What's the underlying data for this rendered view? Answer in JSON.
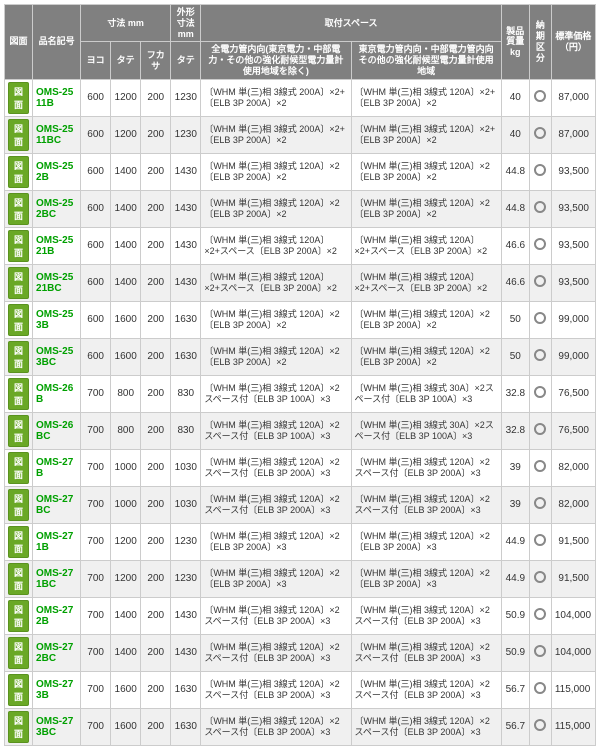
{
  "headers": {
    "zumen": "図面",
    "hinban": "品名記号",
    "sunpo_group": "寸法 mm",
    "gaikei_group": "外形寸法 mm",
    "toritsuke_group": "取付スペース",
    "sub": {
      "yoko": "ヨコ",
      "tate": "タテ",
      "fukasa": "フカサ",
      "tate2": "タテ",
      "spec_all": "全電力管内向(東京電力・中部電力・その他の強化耐候型電力量計使用地域を除く)",
      "spec_tokyo": "東京電力管内向・中部電力管内向その他の強化耐候型電力量計使用地域"
    },
    "shitsuryo": "製品質量 kg",
    "nouki": "納期区分",
    "kakaku": "標準価格（円）"
  },
  "button_label": "図面",
  "rows": [
    {
      "code": "OMS-2511B",
      "yoko": 600,
      "tate": 1200,
      "fukasa": 200,
      "tate2": 1230,
      "spec1": "〔WHM 単(三)相 3線式 200A〕×2+〔ELB 3P 200A〕×2",
      "spec2": "〔WHM 単(三)相 3線式 120A〕×2+〔ELB 3P 200A〕×2",
      "kg": "40",
      "price": "87,000"
    },
    {
      "code": "OMS-2511BC",
      "yoko": 600,
      "tate": 1200,
      "fukasa": 200,
      "tate2": 1230,
      "spec1": "〔WHM 単(三)相 3線式 200A〕×2+〔ELB 3P 200A〕×2",
      "spec2": "〔WHM 単(三)相 3線式 120A〕×2+〔ELB 3P 200A〕×2",
      "kg": "40",
      "price": "87,000"
    },
    {
      "code": "OMS-252B",
      "yoko": 600,
      "tate": 1400,
      "fukasa": 200,
      "tate2": 1430,
      "spec1": "〔WHM 単(三)相 3線式 120A〕×2〔ELB 3P 200A〕×2",
      "spec2": "〔WHM 単(三)相 3線式 120A〕×2〔ELB 3P 200A〕×2",
      "kg": "44.8",
      "price": "93,500"
    },
    {
      "code": "OMS-252BC",
      "yoko": 600,
      "tate": 1400,
      "fukasa": 200,
      "tate2": 1430,
      "spec1": "〔WHM 単(三)相 3線式 120A〕×2〔ELB 3P 200A〕×2",
      "spec2": "〔WHM 単(三)相 3線式 120A〕×2〔ELB 3P 200A〕×2",
      "kg": "44.8",
      "price": "93,500"
    },
    {
      "code": "OMS-2521B",
      "yoko": 600,
      "tate": 1400,
      "fukasa": 200,
      "tate2": 1430,
      "spec1": "〔WHM 単(三)相 3線式 120A〕×2+スペース〔ELB 3P 200A〕×2",
      "spec2": "〔WHM 単(三)相 3線式 120A〕×2+スペース〔ELB 3P 200A〕×2",
      "kg": "46.6",
      "price": "93,500"
    },
    {
      "code": "OMS-2521BC",
      "yoko": 600,
      "tate": 1400,
      "fukasa": 200,
      "tate2": 1430,
      "spec1": "〔WHM 単(三)相 3線式 120A〕×2+スペース〔ELB 3P 200A〕×2",
      "spec2": "〔WHM 単(三)相 3線式 120A〕×2+スペース〔ELB 3P 200A〕×2",
      "kg": "46.6",
      "price": "93,500"
    },
    {
      "code": "OMS-253B",
      "yoko": 600,
      "tate": 1600,
      "fukasa": 200,
      "tate2": 1630,
      "spec1": "〔WHM 単(三)相 3線式 120A〕×2〔ELB 3P 200A〕×2",
      "spec2": "〔WHM 単(三)相 3線式 120A〕×2〔ELB 3P 200A〕×2",
      "kg": "50",
      "price": "99,000"
    },
    {
      "code": "OMS-253BC",
      "yoko": 600,
      "tate": 1600,
      "fukasa": 200,
      "tate2": 1630,
      "spec1": "〔WHM 単(三)相 3線式 120A〕×2〔ELB 3P 200A〕×2",
      "spec2": "〔WHM 単(三)相 3線式 120A〕×2〔ELB 3P 200A〕×2",
      "kg": "50",
      "price": "99,000"
    },
    {
      "code": "OMS-26B",
      "yoko": 700,
      "tate": 800,
      "fukasa": 200,
      "tate2": 830,
      "spec1": "〔WHM 単(三)相 3線式 120A〕×2スペース付〔ELB 3P 100A〕×3",
      "spec2": "〔WHM 単(三)相 3線式 30A〕×2スペース付〔ELB 3P 100A〕×3",
      "kg": "32.8",
      "price": "76,500"
    },
    {
      "code": "OMS-26BC",
      "yoko": 700,
      "tate": 800,
      "fukasa": 200,
      "tate2": 830,
      "spec1": "〔WHM 単(三)相 3線式 120A〕×2スペース付〔ELB 3P 100A〕×3",
      "spec2": "〔WHM 単(三)相 3線式 30A〕×2スペース付〔ELB 3P 100A〕×3",
      "kg": "32.8",
      "price": "76,500"
    },
    {
      "code": "OMS-27B",
      "yoko": 700,
      "tate": 1000,
      "fukasa": 200,
      "tate2": 1030,
      "spec1": "〔WHM 単(三)相 3線式 120A〕×2スペース付〔ELB 3P 200A〕×3",
      "spec2": "〔WHM 単(三)相 3線式 120A〕×2スペース付〔ELB 3P 200A〕×3",
      "kg": "39",
      "price": "82,000"
    },
    {
      "code": "OMS-27BC",
      "yoko": 700,
      "tate": 1000,
      "fukasa": 200,
      "tate2": 1030,
      "spec1": "〔WHM 単(三)相 3線式 120A〕×2スペース付〔ELB 3P 200A〕×3",
      "spec2": "〔WHM 単(三)相 3線式 120A〕×2スペース付〔ELB 3P 200A〕×3",
      "kg": "39",
      "price": "82,000"
    },
    {
      "code": "OMS-271B",
      "yoko": 700,
      "tate": 1200,
      "fukasa": 200,
      "tate2": 1230,
      "spec1": "〔WHM 単(三)相 3線式 120A〕×2〔ELB 3P 200A〕×3",
      "spec2": "〔WHM 単(三)相 3線式 120A〕×2〔ELB 3P 200A〕×3",
      "kg": "44.9",
      "price": "91,500"
    },
    {
      "code": "OMS-271BC",
      "yoko": 700,
      "tate": 1200,
      "fukasa": 200,
      "tate2": 1230,
      "spec1": "〔WHM 単(三)相 3線式 120A〕×2〔ELB 3P 200A〕×3",
      "spec2": "〔WHM 単(三)相 3線式 120A〕×2〔ELB 3P 200A〕×3",
      "kg": "44.9",
      "price": "91,500"
    },
    {
      "code": "OMS-272B",
      "yoko": 700,
      "tate": 1400,
      "fukasa": 200,
      "tate2": 1430,
      "spec1": "〔WHM 単(三)相 3線式 120A〕×2スペース付〔ELB 3P 200A〕×3",
      "spec2": "〔WHM 単(三)相 3線式 120A〕×2スペース付〔ELB 3P 200A〕×3",
      "kg": "50.9",
      "price": "104,000"
    },
    {
      "code": "OMS-272BC",
      "yoko": 700,
      "tate": 1400,
      "fukasa": 200,
      "tate2": 1430,
      "spec1": "〔WHM 単(三)相 3線式 120A〕×2スペース付〔ELB 3P 200A〕×3",
      "spec2": "〔WHM 単(三)相 3線式 120A〕×2スペース付〔ELB 3P 200A〕×3",
      "kg": "50.9",
      "price": "104,000"
    },
    {
      "code": "OMS-273B",
      "yoko": 700,
      "tate": 1600,
      "fukasa": 200,
      "tate2": 1630,
      "spec1": "〔WHM 単(三)相 3線式 120A〕×2スペース付〔ELB 3P 200A〕×3",
      "spec2": "〔WHM 単(三)相 3線式 120A〕×2スペース付〔ELB 3P 200A〕×3",
      "kg": "56.7",
      "price": "115,000"
    },
    {
      "code": "OMS-273BC",
      "yoko": 700,
      "tate": 1600,
      "fukasa": 200,
      "tate2": 1630,
      "spec1": "〔WHM 単(三)相 3線式 120A〕×2スペース付〔ELB 3P 200A〕×3",
      "spec2": "〔WHM 単(三)相 3線式 120A〕×2スペース付〔ELB 3P 200A〕×3",
      "kg": "56.7",
      "price": "115,000"
    }
  ]
}
